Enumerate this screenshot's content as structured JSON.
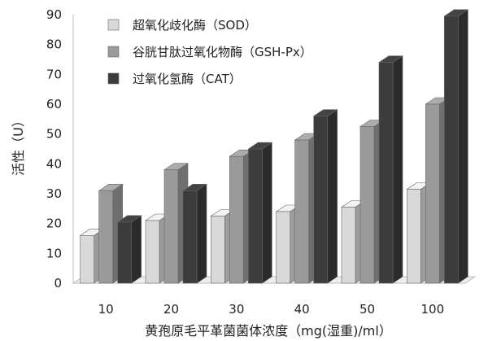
{
  "chart_data": {
    "type": "bar",
    "title": "",
    "xlabel": "黄孢原毛平革菌菌体浓度（mg(湿重)/ml）",
    "ylabel": "活性（U）",
    "categories": [
      "10",
      "20",
      "30",
      "40",
      "50",
      "100"
    ],
    "ylim": [
      0,
      90
    ],
    "yticks": [
      "0",
      "10",
      "20",
      "30",
      "40",
      "50",
      "60",
      "70",
      "80",
      "90"
    ],
    "legend_position": "top-left",
    "grid": false,
    "series": [
      {
        "name": "超氧化歧化酶（SOD）",
        "values": [
          16,
          21,
          22.5,
          24,
          25.5,
          31.5
        ],
        "color": "#d9d9d9"
      },
      {
        "name": "谷胱甘肽过氧化物酶（GSH-Px）",
        "values": [
          31,
          38,
          42.5,
          48,
          52.5,
          60
        ],
        "color": "#9a9a9a"
      },
      {
        "name": "过氧化氢酶（CAT）",
        "values": [
          20.5,
          31,
          45,
          56,
          74,
          89.5
        ],
        "color": "#3c3c3c"
      }
    ]
  }
}
